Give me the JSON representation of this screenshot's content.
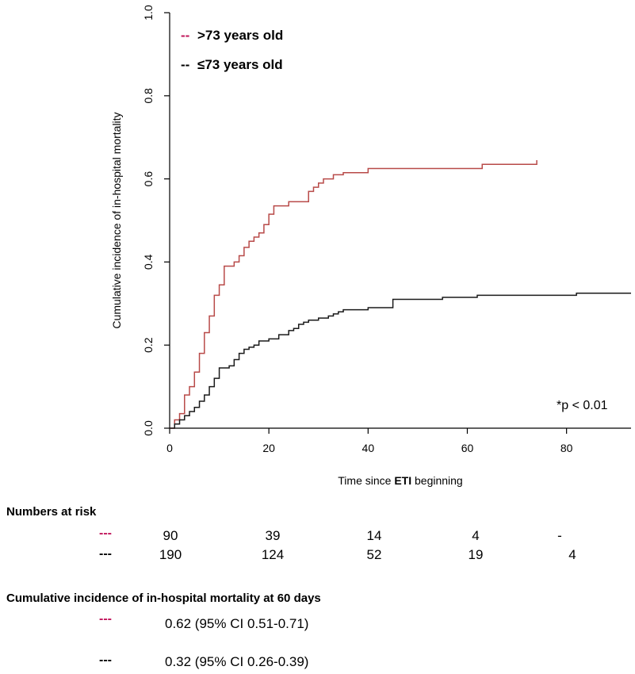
{
  "colors": {
    "older": "#b84a48",
    "younger": "#1a1a1a",
    "older_marker": "#c0145a",
    "younger_marker": "#000000"
  },
  "chart_data": {
    "type": "line",
    "ylabel": "Cumulative incidence of in-hospital mortality",
    "xlabel_prefix": "Time since ",
    "xlabel_bold": "ETI",
    "xlabel_suffix": " beginning",
    "xlim": [
      0,
      93
    ],
    "ylim": [
      0,
      1.0
    ],
    "x_ticks": [
      "0",
      "20",
      "40",
      "60",
      "80"
    ],
    "y_ticks": [
      "0.0",
      "0.2",
      "0.4",
      "0.6",
      "0.8",
      "1.0"
    ],
    "legend": {
      "position": "top-left",
      "entries": [
        {
          "dash": "--",
          "label": ">73 years old"
        },
        {
          "dash": "--",
          "label": "≤73 years old"
        }
      ]
    },
    "annotation": "*p < 0.01",
    "series": [
      {
        "name": ">73 years old",
        "step": true,
        "x": [
          0,
          1,
          2,
          3,
          4,
          5,
          6,
          7,
          8,
          9,
          10,
          11,
          12,
          13,
          14,
          15,
          16,
          17,
          18,
          19,
          20,
          21,
          22,
          24,
          26,
          28,
          29,
          30,
          31,
          33,
          35,
          40,
          45,
          50,
          55,
          63,
          67,
          74
        ],
        "y": [
          0,
          0.02,
          0.035,
          0.08,
          0.1,
          0.135,
          0.18,
          0.23,
          0.27,
          0.32,
          0.345,
          0.39,
          0.39,
          0.4,
          0.415,
          0.435,
          0.45,
          0.46,
          0.47,
          0.49,
          0.515,
          0.535,
          0.535,
          0.545,
          0.545,
          0.57,
          0.58,
          0.59,
          0.6,
          0.61,
          0.615,
          0.625,
          0.625,
          0.625,
          0.625,
          0.635,
          0.635,
          0.645
        ]
      },
      {
        "name": "≤73 years old",
        "step": true,
        "x": [
          0,
          1,
          2,
          3,
          4,
          5,
          6,
          7,
          8,
          9,
          10,
          12,
          13,
          14,
          15,
          16,
          17,
          18,
          20,
          22,
          24,
          25,
          26,
          27,
          28,
          30,
          32,
          33,
          34,
          35,
          40,
          45,
          50,
          55,
          62,
          70,
          82,
          93
        ],
        "y": [
          0,
          0.01,
          0.02,
          0.03,
          0.04,
          0.05,
          0.065,
          0.08,
          0.1,
          0.12,
          0.145,
          0.15,
          0.165,
          0.18,
          0.19,
          0.195,
          0.2,
          0.21,
          0.215,
          0.225,
          0.235,
          0.24,
          0.25,
          0.255,
          0.26,
          0.265,
          0.27,
          0.275,
          0.28,
          0.285,
          0.29,
          0.31,
          0.31,
          0.315,
          0.32,
          0.32,
          0.325,
          0.325
        ]
      }
    ]
  },
  "risk_table": {
    "title": "Numbers at risk",
    "dash": "---",
    "rows": [
      {
        "group": ">73 years old",
        "values": [
          "90",
          "39",
          "14",
          "4",
          "-"
        ]
      },
      {
        "group": "≤73 years old",
        "values": [
          "190",
          "124",
          "52",
          "19",
          "4"
        ]
      }
    ]
  },
  "incidence_60": {
    "title": "Cumulative incidence of in-hospital mortality at 60 days",
    "dash": "---",
    "rows": [
      {
        "group": ">73 years old",
        "value": "0.62 (95% CI 0.51-0.71)"
      },
      {
        "group": "≤73 years old",
        "value": "0.32 (95% CI 0.26-0.39)"
      }
    ]
  }
}
